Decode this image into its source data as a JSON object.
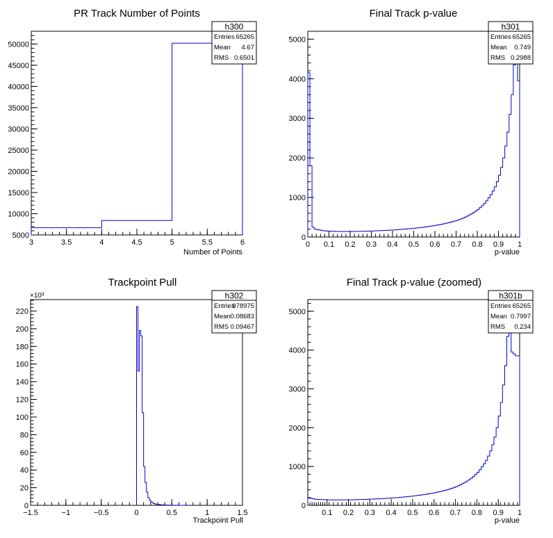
{
  "colors": {
    "line": "#0000cc",
    "axis": "#000000",
    "background": "#ffffff"
  },
  "chart_data": [
    {
      "id": "h300",
      "type": "histogram",
      "title": "PR Track Number of Points",
      "xlabel": "Number of Points",
      "ylabel": "",
      "xlim": [
        3,
        6
      ],
      "ylim": [
        5000,
        53000
      ],
      "xticks": [
        3,
        3.5,
        4,
        4.5,
        5,
        5.5,
        6
      ],
      "xtick_labels": [
        "3",
        "3.5",
        "4",
        "4.5",
        "5",
        "5.5",
        "6"
      ],
      "yticks": [
        5000,
        10000,
        15000,
        20000,
        25000,
        30000,
        35000,
        40000,
        45000,
        50000
      ],
      "ytick_labels": [
        "5000",
        "10000",
        "15000",
        "20000",
        "25000",
        "30000",
        "35000",
        "40000",
        "45000",
        "50000"
      ],
      "y_multiplier": "",
      "bin_edges": [
        3,
        4,
        5,
        6
      ],
      "values": [
        6700,
        8400,
        50200
      ],
      "stats": {
        "name": "h300",
        "rows": [
          [
            "Entries",
            "65265"
          ],
          [
            "Mean",
            "4.67"
          ],
          [
            "RMS",
            "0.6501"
          ]
        ]
      }
    },
    {
      "id": "h301",
      "type": "histogram",
      "title": "Final Track p-value",
      "xlabel": "p-value",
      "ylabel": "",
      "xlim": [
        0,
        1
      ],
      "ylim": [
        0,
        5200
      ],
      "xticks": [
        0,
        0.1,
        0.2,
        0.3,
        0.4,
        0.5,
        0.6,
        0.7,
        0.8,
        0.9,
        1
      ],
      "xtick_labels": [
        "0",
        "0.1",
        "0.2",
        "0.3",
        "0.4",
        "0.5",
        "0.6",
        "0.7",
        "0.8",
        "0.9",
        "1"
      ],
      "yticks": [
        0,
        1000,
        2000,
        3000,
        4000,
        5000
      ],
      "ytick_labels": [
        "0",
        "1000",
        "2000",
        "3000",
        "4000",
        "5000"
      ],
      "y_multiplier": "",
      "bin_start": 0,
      "bin_width": 0.01,
      "values": [
        4150,
        1800,
        250,
        200,
        190,
        180,
        170,
        160,
        155,
        150,
        150,
        145,
        145,
        140,
        140,
        140,
        138,
        138,
        138,
        140,
        140,
        140,
        142,
        142,
        143,
        145,
        145,
        148,
        150,
        150,
        152,
        155,
        158,
        160,
        162,
        165,
        168,
        170,
        172,
        175,
        178,
        182,
        185,
        190,
        195,
        198,
        202,
        208,
        212,
        218,
        222,
        228,
        235,
        240,
        248,
        255,
        262,
        270,
        278,
        285,
        295,
        305,
        315,
        325,
        338,
        350,
        362,
        375,
        390,
        405,
        420,
        440,
        460,
        480,
        505,
        530,
        560,
        590,
        625,
        660,
        700,
        745,
        795,
        850,
        915,
        990,
        1070,
        1160,
        1270,
        1400,
        1560,
        1760,
        2000,
        2300,
        2650,
        3100,
        3600,
        4350,
        4500,
        3950
      ],
      "stats": {
        "name": "h301",
        "rows": [
          [
            "Entries",
            "65265"
          ],
          [
            "Mean",
            "0.749"
          ],
          [
            "RMS",
            "0.2988"
          ]
        ]
      }
    },
    {
      "id": "h302",
      "type": "histogram",
      "title": "Trackpoint Pull",
      "xlabel": "Trackpoint Pull",
      "ylabel": "",
      "xlim": [
        -1.5,
        1.5
      ],
      "ylim": [
        0,
        233000
      ],
      "xticks": [
        -1.5,
        -1,
        -0.5,
        0,
        0.5,
        1,
        1.5
      ],
      "xtick_labels": [
        "−1.5",
        "−1",
        "−0.5",
        "0",
        "0.5",
        "1",
        "1.5"
      ],
      "yticks": [
        0,
        20000,
        40000,
        60000,
        80000,
        100000,
        120000,
        140000,
        160000,
        180000,
        200000,
        220000
      ],
      "ytick_labels": [
        "0",
        "20",
        "40",
        "60",
        "80",
        "100",
        "120",
        "140",
        "160",
        "180",
        "200",
        "220"
      ],
      "y_multiplier": "×10³",
      "bin_start": 0,
      "bin_width": 0.02,
      "values": [
        225000,
        152000,
        198000,
        192000,
        105000,
        44000,
        26000,
        15000,
        9000,
        6000,
        4000,
        3000,
        2000,
        1500,
        1200,
        1000,
        800,
        600,
        500,
        400,
        300,
        250,
        200,
        180,
        150,
        120,
        100,
        80,
        60,
        50,
        40,
        30,
        20,
        15,
        10
      ],
      "stats": {
        "name": "h302",
        "rows": [
          [
            "Entries",
            "978975"
          ],
          [
            "Mean",
            "0.08683"
          ],
          [
            "RMS",
            "0.09467"
          ]
        ]
      }
    },
    {
      "id": "h301b",
      "type": "histogram",
      "title": "Final Track p-value (zoomed)",
      "xlabel": "p-value",
      "ylabel": "",
      "xlim": [
        0.01,
        1
      ],
      "ylim": [
        0,
        5300
      ],
      "xticks": [
        0.1,
        0.2,
        0.3,
        0.4,
        0.5,
        0.6,
        0.7,
        0.8,
        0.9,
        1
      ],
      "xtick_labels": [
        "0.1",
        "0.2",
        "0.3",
        "0.4",
        "0.5",
        "0.6",
        "0.7",
        "0.8",
        "0.9",
        "1"
      ],
      "yticks": [
        0,
        1000,
        2000,
        3000,
        4000,
        5000
      ],
      "ytick_labels": [
        "0",
        "1000",
        "2000",
        "3000",
        "4000",
        "5000"
      ],
      "y_multiplier": "",
      "bin_start": 0.01,
      "bin_width": 0.01,
      "values": [
        190,
        180,
        170,
        160,
        155,
        150,
        150,
        145,
        145,
        140,
        140,
        140,
        138,
        138,
        138,
        140,
        140,
        140,
        142,
        142,
        143,
        145,
        145,
        148,
        150,
        150,
        152,
        155,
        158,
        160,
        162,
        165,
        168,
        170,
        172,
        175,
        178,
        182,
        185,
        190,
        195,
        198,
        202,
        208,
        212,
        218,
        222,
        228,
        235,
        240,
        248,
        255,
        262,
        270,
        278,
        285,
        295,
        305,
        315,
        325,
        338,
        350,
        362,
        375,
        390,
        405,
        420,
        440,
        460,
        480,
        505,
        530,
        560,
        590,
        625,
        660,
        700,
        745,
        795,
        850,
        915,
        990,
        1070,
        1160,
        1270,
        1400,
        1560,
        1760,
        2000,
        2300,
        2650,
        3100,
        3600,
        4350,
        4500,
        3950,
        3900,
        3850,
        3850
      ],
      "stats": {
        "name": "h301b",
        "rows": [
          [
            "Entries",
            "65265"
          ],
          [
            "Mean",
            "0.7997"
          ],
          [
            "RMS",
            "0.234"
          ]
        ]
      }
    }
  ]
}
